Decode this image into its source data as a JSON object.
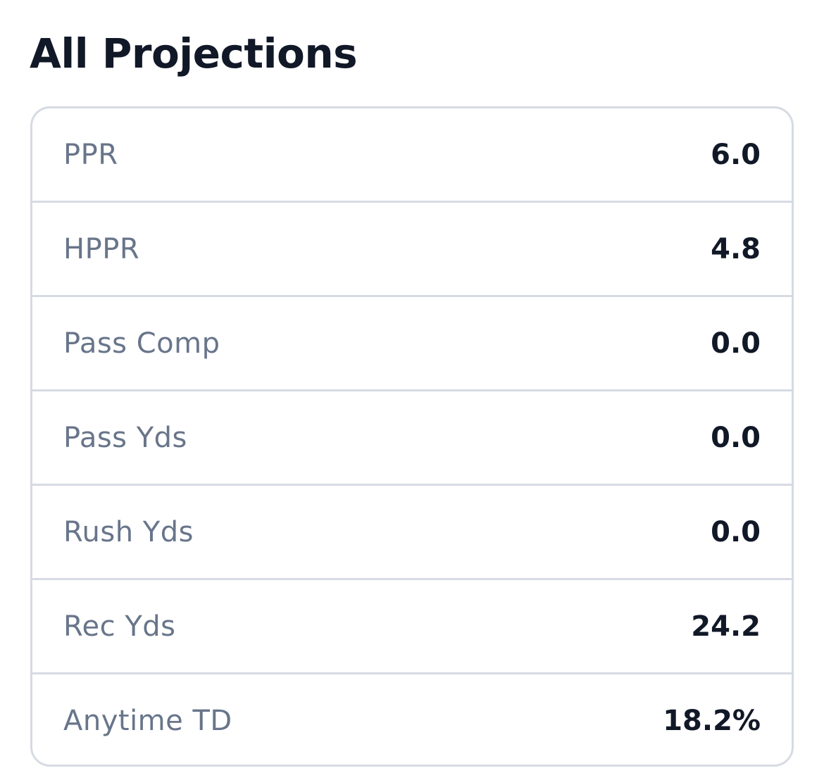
{
  "section": {
    "title": "All Projections"
  },
  "projections": [
    {
      "label": "PPR",
      "value": "6.0"
    },
    {
      "label": "HPPR",
      "value": "4.8"
    },
    {
      "label": "Pass Comp",
      "value": "0.0"
    },
    {
      "label": "Pass Yds",
      "value": "0.0"
    },
    {
      "label": "Rush Yds",
      "value": "0.0"
    },
    {
      "label": "Rec Yds",
      "value": "24.2"
    },
    {
      "label": "Anytime TD",
      "value": "18.2%"
    }
  ]
}
